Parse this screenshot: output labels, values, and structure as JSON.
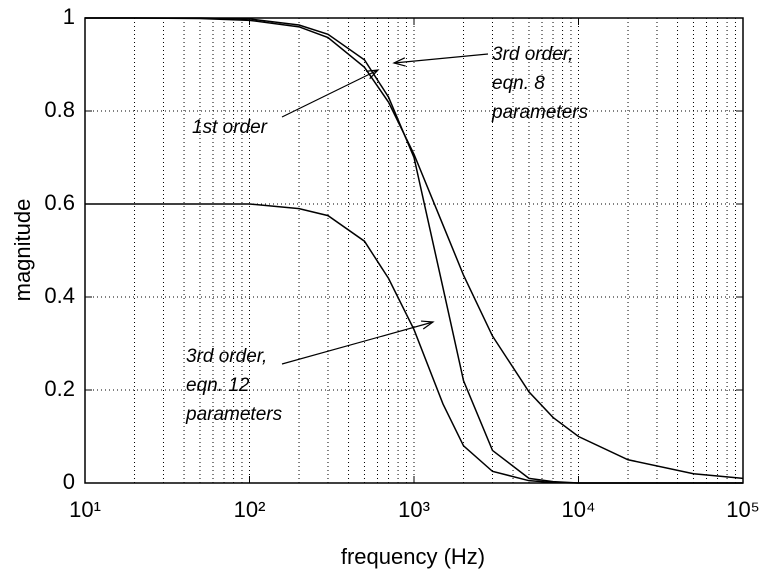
{
  "chart_data": {
    "type": "line",
    "xlabel": "frequency (Hz)",
    "ylabel": "magnitude",
    "xlog": true,
    "grid": true,
    "minor_grid": true,
    "xlim": [
      10,
      100000
    ],
    "ylim": [
      0,
      1
    ],
    "xticks": [
      {
        "value": 10,
        "label": "10¹"
      },
      {
        "value": 100,
        "label": "10²"
      },
      {
        "value": 1000,
        "label": "10³"
      },
      {
        "value": 10000,
        "label": "10⁴"
      },
      {
        "value": 100000,
        "label": "10⁵"
      }
    ],
    "yticks": [
      0,
      0.2,
      0.4,
      0.6,
      0.8,
      1
    ],
    "x": [
      10,
      20,
      50,
      100,
      200,
      300,
      500,
      700,
      1000,
      1500,
      2000,
      3000,
      5000,
      7000,
      10000,
      20000,
      50000,
      100000
    ],
    "series": [
      {
        "color": "#000000",
        "values": [
          1,
          1,
          0.999,
          0.995,
          0.981,
          0.958,
          0.894,
          0.819,
          0.707,
          0.555,
          0.447,
          0.316,
          0.196,
          0.141,
          0.1,
          0.05,
          0.02,
          0.01
        ]
      },
      {
        "color": "#000000",
        "values": [
          1,
          1,
          1,
          0.998,
          0.985,
          0.965,
          0.91,
          0.83,
          0.7,
          0.42,
          0.22,
          0.07,
          0.01,
          0.003,
          0,
          0,
          0,
          0
        ]
      },
      {
        "color": "#000000",
        "values": [
          0.6,
          0.6,
          0.6,
          0.6,
          0.59,
          0.575,
          0.52,
          0.44,
          0.33,
          0.17,
          0.08,
          0.025,
          0.005,
          0.001,
          0,
          0,
          0,
          0
        ]
      }
    ],
    "annotations": [
      {
        "lines": [
          "1st order"
        ],
        "series": 0
      },
      {
        "lines": [
          "3rd order,",
          "eqn. 8",
          "parameters"
        ],
        "series": 1
      },
      {
        "lines": [
          "3rd order,",
          "eqn. 12",
          "parameters"
        ],
        "series": 2
      }
    ]
  }
}
